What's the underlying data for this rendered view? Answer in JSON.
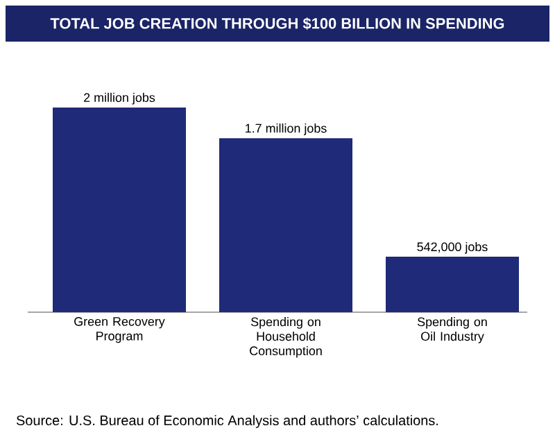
{
  "chart_data": {
    "type": "bar",
    "title": "TOTAL JOB CREATION THROUGH $100 BILLION IN SPENDING",
    "categories": [
      "Green Recovery Program",
      "Spending on Household Consumption",
      "Spending on Oil Industry"
    ],
    "values": [
      2000000,
      1700000,
      542000
    ],
    "value_labels": [
      "2 million jobs",
      "1.7 million jobs",
      "542,000 jobs"
    ],
    "color": "#1f2a78",
    "annotations": [
      "Source: U.S. Bureau of Economic Analysis and authors’ calculations."
    ]
  }
}
